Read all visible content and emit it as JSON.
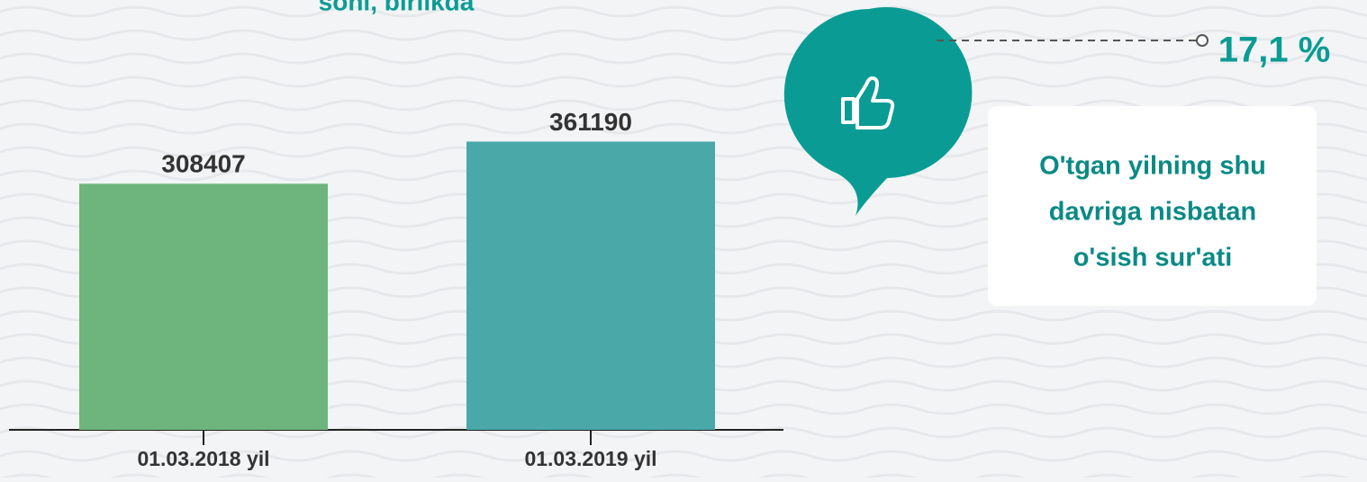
{
  "chart_data": {
    "type": "bar",
    "title": "soni, birlikda",
    "categories": [
      "01.03.2018 yil",
      "01.03.2019 yil"
    ],
    "values": [
      308407,
      361190
    ],
    "colors": [
      "#6db57c",
      "#4aa8a9"
    ],
    "ylim": [
      0,
      400000
    ],
    "annotations": [
      "17,1 %"
    ],
    "note_lines": [
      "O'tgan yilning shu",
      "davriga nisbatan",
      "o'sish sur'ati"
    ]
  }
}
